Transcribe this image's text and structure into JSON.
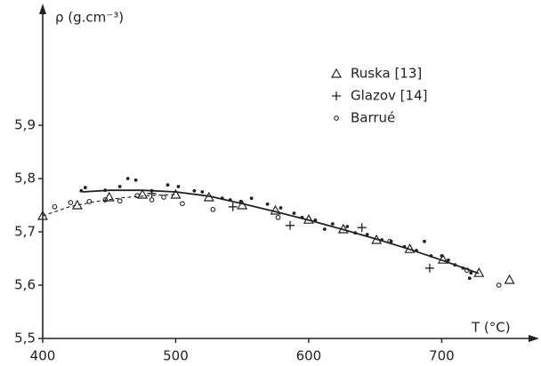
{
  "chart_data": {
    "type": "scatter",
    "ylabel": "ρ (g.cm⁻³)",
    "xlabel": "T (°C)",
    "xlim": [
      400,
      770
    ],
    "ylim": [
      5.5,
      6.12
    ],
    "xticks": [
      400,
      500,
      600,
      700
    ],
    "yticks": [
      {
        "value": 5.5,
        "label": "5,5"
      },
      {
        "value": 5.6,
        "label": "5,6"
      },
      {
        "value": 5.7,
        "label": "5,7"
      },
      {
        "value": 5.8,
        "label": "5,8"
      },
      {
        "value": 5.9,
        "label": "5,9"
      }
    ],
    "legend": "upper right",
    "color": "#222222",
    "series": [
      {
        "name": "Ruska [13]",
        "marker": "triangle",
        "x": [
          400,
          426,
          450,
          475,
          500,
          525,
          550,
          575,
          600,
          626,
          651,
          676,
          701,
          728,
          751
        ],
        "values": [
          5.73,
          5.75,
          5.765,
          5.77,
          5.77,
          5.765,
          5.75,
          5.74,
          5.723,
          5.705,
          5.685,
          5.668,
          5.648,
          5.623,
          5.61
        ]
      },
      {
        "name": "Glazov [14]",
        "marker": "plus",
        "x": [
          482,
          543,
          586,
          640,
          691
        ],
        "values": [
          5.772,
          5.747,
          5.712,
          5.708,
          5.632
        ]
      },
      {
        "name": "Barrué",
        "marker": "circle",
        "x": [
          409,
          421,
          435,
          447,
          458,
          471,
          482,
          491,
          505,
          528,
          577,
          661,
          719,
          743
        ],
        "values": [
          5.747,
          5.755,
          5.757,
          5.76,
          5.758,
          5.768,
          5.76,
          5.765,
          5.753,
          5.742,
          5.727,
          5.682,
          5.628,
          5.6
        ]
      },
      {
        "marker": "dot",
        "x": [
          429,
          432,
          447,
          458,
          464,
          470,
          482,
          494,
          502,
          514,
          520,
          535,
          541,
          549,
          557,
          569,
          579,
          589,
          595,
          605,
          612,
          618,
          629,
          635,
          644,
          655,
          662,
          672,
          681,
          687,
          692,
          700,
          705,
          710,
          716,
          722,
          721
        ],
        "values": [
          5.777,
          5.783,
          5.778,
          5.785,
          5.8,
          5.797,
          5.777,
          5.788,
          5.785,
          5.777,
          5.775,
          5.763,
          5.76,
          5.757,
          5.763,
          5.752,
          5.745,
          5.735,
          5.727,
          5.722,
          5.705,
          5.715,
          5.71,
          5.698,
          5.695,
          5.685,
          5.682,
          5.672,
          5.665,
          5.682,
          5.655,
          5.655,
          5.647,
          5.638,
          5.632,
          5.623,
          5.613
        ]
      },
      {
        "line": "solid",
        "x": [
          430,
          450,
          475,
          500,
          525,
          550,
          575,
          600,
          625,
          650,
          675,
          700,
          728
        ],
        "values": [
          5.775,
          5.778,
          5.778,
          5.775,
          5.767,
          5.753,
          5.738,
          5.722,
          5.705,
          5.687,
          5.668,
          5.647,
          5.622
        ]
      },
      {
        "line": "dashed",
        "x": [
          400,
          420,
          440,
          460,
          480,
          500
        ],
        "values": [
          5.73,
          5.747,
          5.757,
          5.764,
          5.768,
          5.77
        ]
      }
    ]
  }
}
